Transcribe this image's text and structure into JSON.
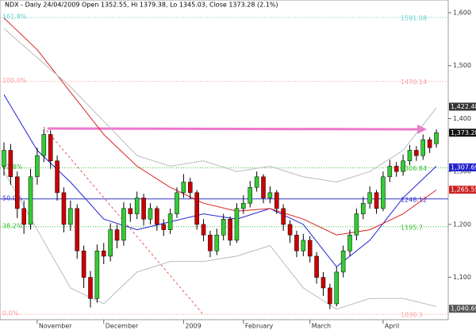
{
  "chart_data": {
    "type": "candlestick",
    "title": "NDX - Daily 24/04/2009 Open 1352.55, Hi 1379.38, Lo 1345.03, Close 1373.28 (2.1%)",
    "categories": [
      null,
      null,
      null,
      null,
      null,
      "November",
      null,
      null,
      null,
      null,
      null,
      null,
      null,
      null,
      null,
      "December",
      null,
      null,
      null,
      null,
      null,
      null,
      null,
      null,
      null,
      null,
      null,
      "2009",
      null,
      null,
      null,
      null,
      null,
      null,
      null,
      null,
      "February",
      null,
      null,
      null,
      null,
      null,
      null,
      null,
      null,
      null,
      "March",
      null,
      null,
      null,
      null,
      null,
      null,
      null,
      null,
      null,
      null,
      "April",
      null,
      null,
      null,
      null,
      null,
      null,
      null,
      null
    ],
    "open": [
      1310,
      1340,
      1290,
      1230,
      1200,
      1290,
      1330,
      1370,
      1320,
      1260,
      1200,
      1230,
      1150,
      1100,
      1060,
      1150,
      1140,
      1190,
      1170,
      1230,
      1220,
      1250,
      1210,
      1230,
      1200,
      1190,
      1220,
      1260,
      1280,
      1260,
      1200,
      1180,
      1150,
      1180,
      1210,
      1170,
      1230,
      1240,
      1270,
      1290,
      1250,
      1260,
      1230,
      1200,
      1180,
      1150,
      1170,
      1140,
      1100,
      1080,
      1050,
      1110,
      1150,
      1180,
      1220,
      1240,
      1260,
      1230,
      1290,
      1310,
      1300,
      1320,
      1340,
      1330,
      1360,
      1352.55
    ],
    "high": [
      1355,
      1352,
      1300,
      1245,
      1305,
      1345,
      1380,
      1378,
      1330,
      1270,
      1245,
      1238,
      1160,
      1112,
      1162,
      1165,
      1202,
      1200,
      1242,
      1240,
      1262,
      1258,
      1240,
      1235,
      1210,
      1230,
      1270,
      1295,
      1288,
      1265,
      1210,
      1188,
      1192,
      1220,
      1215,
      1240,
      1255,
      1282,
      1300,
      1295,
      1272,
      1265,
      1238,
      1208,
      1188,
      1182,
      1178,
      1148,
      1110,
      1088,
      1120,
      1160,
      1190,
      1230,
      1252,
      1272,
      1265,
      1300,
      1322,
      1318,
      1332,
      1350,
      1348,
      1370,
      1365,
      1379.38
    ],
    "low": [
      1292,
      1275,
      1212,
      1182,
      1190,
      1275,
      1318,
      1305,
      1245,
      1185,
      1188,
      1135,
      1080,
      1043,
      1052,
      1125,
      1130,
      1155,
      1160,
      1205,
      1210,
      1198,
      1200,
      1188,
      1178,
      1182,
      1212,
      1250,
      1248,
      1190,
      1168,
      1138,
      1142,
      1170,
      1160,
      1165,
      1220,
      1232,
      1262,
      1240,
      1240,
      1220,
      1188,
      1165,
      1138,
      1140,
      1128,
      1088,
      1065,
      1040,
      1045,
      1100,
      1140,
      1170,
      1210,
      1230,
      1220,
      1225,
      1280,
      1290,
      1292,
      1312,
      1320,
      1322,
      1335,
      1345.03
    ],
    "close": [
      1340,
      1290,
      1230,
      1200,
      1290,
      1330,
      1370,
      1320,
      1260,
      1200,
      1230,
      1150,
      1100,
      1060,
      1150,
      1140,
      1190,
      1170,
      1230,
      1220,
      1250,
      1210,
      1230,
      1200,
      1190,
      1220,
      1260,
      1280,
      1260,
      1200,
      1180,
      1150,
      1180,
      1210,
      1170,
      1230,
      1240,
      1270,
      1290,
      1250,
      1260,
      1230,
      1200,
      1180,
      1150,
      1170,
      1140,
      1100,
      1080,
      1050,
      1110,
      1150,
      1180,
      1220,
      1240,
      1260,
      1230,
      1290,
      1310,
      1300,
      1320,
      1340,
      1330,
      1360,
      1345,
      1373.28
    ],
    "up_color": "#33cc33",
    "down_color": "#cc0000",
    "series": [
      {
        "color": "#2222dd",
        "x": [
          0,
          5,
          10,
          15,
          20,
          25,
          30,
          35,
          40,
          45,
          50,
          55,
          60,
          65
        ],
        "values": [
          1445,
          1340,
          1280,
          1210,
          1190,
          1205,
          1220,
          1210,
          1230,
          1200,
          1120,
          1170,
          1250,
          1310
        ]
      },
      {
        "color": "#dd2222",
        "x": [
          0,
          5,
          10,
          15,
          20,
          25,
          30,
          35,
          40,
          45,
          50,
          55,
          60,
          65
        ],
        "values": [
          1590,
          1530,
          1450,
          1370,
          1310,
          1270,
          1240,
          1225,
          1230,
          1210,
          1180,
          1190,
          1220,
          1265
        ]
      },
      {
        "color": "#bbbbbb",
        "x": [
          0,
          10,
          20,
          25,
          30,
          35,
          40,
          45,
          50,
          55,
          60,
          65
        ],
        "values": [
          1570,
          1460,
          1330,
          1310,
          1320,
          1300,
          1310,
          1290,
          1280,
          1300,
          1340,
          1420
        ]
      },
      {
        "color": "#bbbbbb",
        "x": [
          0,
          5,
          10,
          15,
          20,
          25,
          30,
          35,
          40,
          45,
          50,
          55,
          60,
          65
        ],
        "values": [
          1300,
          1190,
          1080,
          1050,
          1110,
          1130,
          1130,
          1140,
          1160,
          1080,
          1040,
          1060,
          1060,
          1045
        ]
      }
    ],
    "fib_levels": [
      {
        "label": "161.8%",
        "value": 1591.08,
        "color": "#66cccc",
        "solid": false
      },
      {
        "label": "100.0%",
        "value": 1470.14,
        "color": "#ff9999",
        "solid": false
      },
      {
        "label": "61.8%",
        "value": 1306.84,
        "color": "#33bb33",
        "solid": false
      },
      {
        "label": "50.0%",
        "value": 1248.12,
        "color": "#3333cc",
        "solid": true
      },
      {
        "label": "38.2%",
        "value": 1195.7,
        "color": "#33bb33",
        "solid": false
      },
      {
        "label": "0.0%",
        "value": 1030.3,
        "color": "#ff9999",
        "solid": false
      }
    ],
    "price_labels": [
      {
        "value": 1422.48,
        "label": "1,422.48",
        "color": "#333333"
      },
      {
        "value": 1373.28,
        "label": "1,373.28",
        "color": "#111111"
      },
      {
        "value": 1307.69,
        "label": "1,307.69",
        "color": "#2222cc"
      },
      {
        "value": 1265.55,
        "label": "1,265.55",
        "color": "#cc2222"
      },
      {
        "value": 1040.69,
        "label": "1,040.69",
        "color": "#555555"
      }
    ],
    "ylim": [
      1020,
      1624
    ],
    "yticks": [
      {
        "value": 1100,
        "label": "1,100"
      },
      {
        "value": 1200,
        "label": "1,200"
      },
      {
        "value": 1300,
        "label": "1,300"
      },
      {
        "value": 1400,
        "label": "1,400"
      },
      {
        "value": 1500,
        "label": "1,500"
      },
      {
        "value": 1600,
        "label": "1,600"
      }
    ]
  }
}
